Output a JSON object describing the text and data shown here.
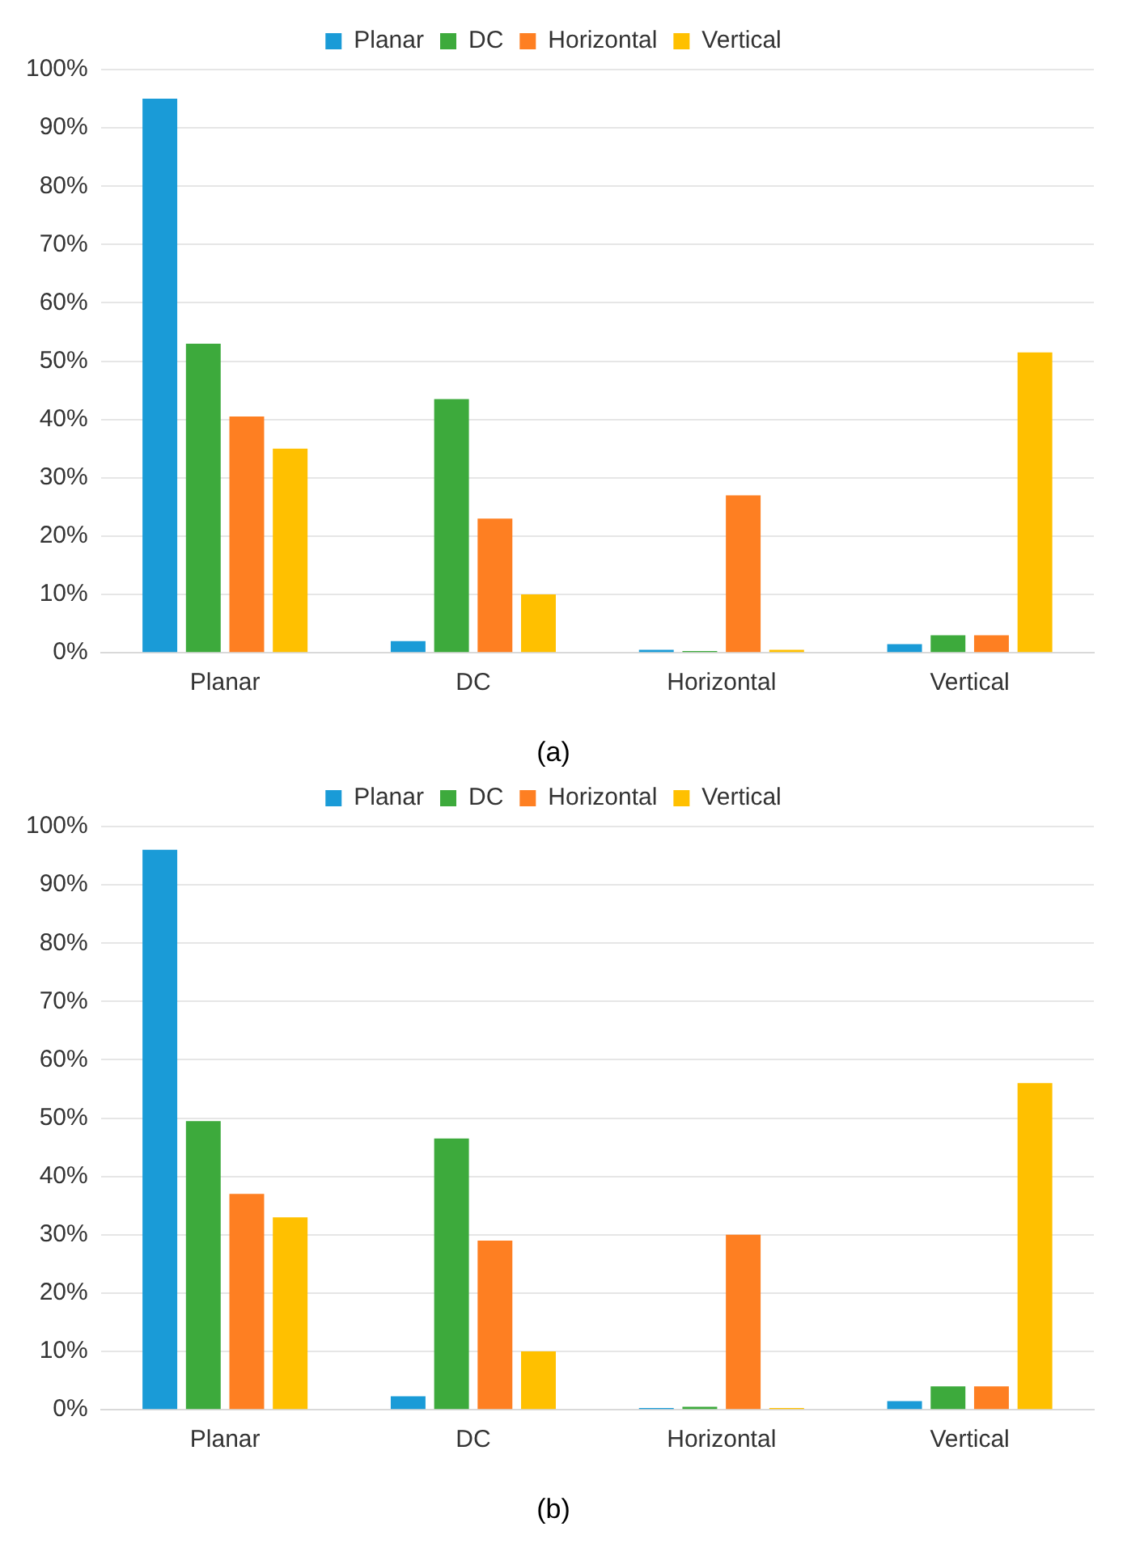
{
  "chart_data": [
    {
      "type": "bar",
      "title": "(a)",
      "categories": [
        "Planar",
        "DC",
        "Horizontal",
        "Vertical"
      ],
      "series": [
        {
          "name": "Planar",
          "color": "#1a9bd7",
          "values": [
            95,
            2,
            0.5,
            1.5
          ]
        },
        {
          "name": "DC",
          "color": "#3daa3c",
          "values": [
            53,
            43.5,
            0.3,
            3
          ]
        },
        {
          "name": "Horizontal",
          "color": "#fe7f22",
          "values": [
            40.5,
            23,
            27,
            3
          ]
        },
        {
          "name": "Vertical",
          "color": "#ffc000",
          "values": [
            35,
            10,
            0.5,
            51.5
          ]
        }
      ],
      "ylim": [
        0,
        100
      ],
      "yticks": [
        {
          "value": 0,
          "label": "0%"
        },
        {
          "value": 10,
          "label": "10%"
        },
        {
          "value": 20,
          "label": "20%"
        },
        {
          "value": 30,
          "label": "30%"
        },
        {
          "value": 40,
          "label": "40%"
        },
        {
          "value": 50,
          "label": "50%"
        },
        {
          "value": 60,
          "label": "60%"
        },
        {
          "value": 70,
          "label": "70%"
        },
        {
          "value": 80,
          "label": "80%"
        },
        {
          "value": 90,
          "label": "90%"
        },
        {
          "value": 100,
          "label": "100%"
        }
      ],
      "grid": "y",
      "legend": "top"
    },
    {
      "type": "bar",
      "title": "(b)",
      "categories": [
        "Planar",
        "DC",
        "Horizontal",
        "Vertical"
      ],
      "series": [
        {
          "name": "Planar",
          "color": "#1a9bd7",
          "values": [
            96,
            2.3,
            0.3,
            1.5
          ]
        },
        {
          "name": "DC",
          "color": "#3daa3c",
          "values": [
            49.5,
            46.5,
            0.5,
            4
          ]
        },
        {
          "name": "Horizontal",
          "color": "#fe7f22",
          "values": [
            37,
            29,
            30,
            4
          ]
        },
        {
          "name": "Vertical",
          "color": "#ffc000",
          "values": [
            33,
            10,
            0.3,
            56
          ]
        }
      ],
      "ylim": [
        0,
        100
      ],
      "yticks": [
        {
          "value": 0,
          "label": "0%"
        },
        {
          "value": 10,
          "label": "10%"
        },
        {
          "value": 20,
          "label": "20%"
        },
        {
          "value": 30,
          "label": "30%"
        },
        {
          "value": 40,
          "label": "40%"
        },
        {
          "value": 50,
          "label": "50%"
        },
        {
          "value": 60,
          "label": "60%"
        },
        {
          "value": 70,
          "label": "70%"
        },
        {
          "value": 80,
          "label": "80%"
        },
        {
          "value": 90,
          "label": "90%"
        },
        {
          "value": 100,
          "label": "100%"
        }
      ],
      "grid": "y",
      "legend": "top"
    }
  ]
}
